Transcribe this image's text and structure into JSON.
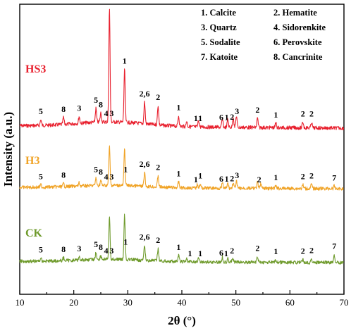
{
  "chart_data": {
    "type": "line",
    "xlabel": "2θ (°)",
    "ylabel": "Intensity (a.u.)",
    "xlim": [
      10,
      70
    ],
    "x_ticks": [
      10,
      20,
      30,
      40,
      50,
      60,
      70
    ],
    "legend_placement": "top-right",
    "legend": [
      {
        "key": "1",
        "name": "Calcite"
      },
      {
        "key": "2",
        "name": "Hematite"
      },
      {
        "key": "3",
        "name": "Quartz"
      },
      {
        "key": "4",
        "name": "Sidorenkite"
      },
      {
        "key": "5",
        "name": "Sodalite"
      },
      {
        "key": "6",
        "name": "Perovskite"
      },
      {
        "key": "7",
        "name": "Katoite"
      },
      {
        "key": "8",
        "name": "Cancrinite"
      }
    ],
    "series": [
      {
        "name": "HS3",
        "color": "#e8202e",
        "baseline": 0.2,
        "peaks": [
          [
            13.9,
            0.05
          ],
          [
            18.1,
            0.06
          ],
          [
            21.0,
            0.06
          ],
          [
            24.1,
            0.12
          ],
          [
            25.0,
            0.08
          ],
          [
            26.6,
            1.0
          ],
          [
            29.4,
            0.46
          ],
          [
            33.1,
            0.19
          ],
          [
            35.6,
            0.17
          ],
          [
            39.4,
            0.09
          ],
          [
            40.9,
            0.05
          ],
          [
            43.1,
            0.06
          ],
          [
            47.5,
            0.07
          ],
          [
            48.5,
            0.07
          ],
          [
            49.5,
            0.09
          ],
          [
            50.1,
            0.1
          ],
          [
            54.0,
            0.08
          ],
          [
            57.4,
            0.04
          ],
          [
            62.4,
            0.05
          ],
          [
            64.0,
            0.05
          ]
        ],
        "peak_labels": [
          {
            "x": 13.9,
            "text": "5"
          },
          {
            "x": 18.1,
            "text": "8"
          },
          {
            "x": 21.0,
            "text": "3"
          },
          {
            "x": 24.1,
            "text": "5"
          },
          {
            "x": 25.0,
            "text": "8"
          },
          {
            "x": 26.0,
            "text": "4"
          },
          {
            "x": 27.0,
            "text": "3"
          },
          {
            "x": 29.4,
            "text": "1"
          },
          {
            "x": 33.1,
            "text": "2,6"
          },
          {
            "x": 35.6,
            "text": "2"
          },
          {
            "x": 39.4,
            "text": "1"
          },
          {
            "x": 42.6,
            "text": "1"
          },
          {
            "x": 43.4,
            "text": "1"
          },
          {
            "x": 47.3,
            "text": "6"
          },
          {
            "x": 48.3,
            "text": "1"
          },
          {
            "x": 49.3,
            "text": "2"
          },
          {
            "x": 50.2,
            "text": "3"
          },
          {
            "x": 54.0,
            "text": "2"
          },
          {
            "x": 57.4,
            "text": "1"
          },
          {
            "x": 62.4,
            "text": "2"
          },
          {
            "x": 64.0,
            "text": "2"
          }
        ]
      },
      {
        "name": "H3",
        "color": "#f0a326",
        "baseline": 0.07,
        "peaks": [
          [
            13.9,
            0.04
          ],
          [
            18.1,
            0.05
          ],
          [
            21.0,
            0.05
          ],
          [
            24.1,
            0.12
          ],
          [
            25.0,
            0.08
          ],
          [
            26.6,
            0.62
          ],
          [
            29.4,
            0.58
          ],
          [
            33.1,
            0.22
          ],
          [
            35.6,
            0.18
          ],
          [
            39.4,
            0.09
          ],
          [
            42.9,
            0.06
          ],
          [
            43.4,
            0.06
          ],
          [
            47.5,
            0.08
          ],
          [
            48.5,
            0.08
          ],
          [
            49.5,
            0.09
          ],
          [
            50.1,
            0.11
          ],
          [
            54.0,
            0.09
          ],
          [
            54.6,
            0.08
          ],
          [
            57.4,
            0.04
          ],
          [
            62.4,
            0.06
          ],
          [
            64.0,
            0.07
          ],
          [
            68.2,
            0.04
          ]
        ],
        "peak_labels": [
          {
            "x": 13.9,
            "text": "5"
          },
          {
            "x": 18.1,
            "text": "8"
          },
          {
            "x": 24.1,
            "text": "5"
          },
          {
            "x": 25.0,
            "text": "8"
          },
          {
            "x": 26.0,
            "text": "4"
          },
          {
            "x": 27.0,
            "text": "3"
          },
          {
            "x": 29.6,
            "text": "1"
          },
          {
            "x": 33.1,
            "text": "2,6"
          },
          {
            "x": 35.6,
            "text": "2"
          },
          {
            "x": 39.4,
            "text": "1"
          },
          {
            "x": 42.6,
            "text": "1"
          },
          {
            "x": 43.4,
            "text": "1"
          },
          {
            "x": 47.3,
            "text": "6"
          },
          {
            "x": 48.3,
            "text": "1"
          },
          {
            "x": 49.3,
            "text": "2"
          },
          {
            "x": 50.2,
            "text": "3"
          },
          {
            "x": 54.3,
            "text": "2"
          },
          {
            "x": 57.4,
            "text": "1"
          },
          {
            "x": 62.4,
            "text": "2"
          },
          {
            "x": 64.0,
            "text": "2"
          },
          {
            "x": 68.2,
            "text": "7"
          }
        ]
      },
      {
        "name": "CK",
        "color": "#6e9a2b",
        "baseline": 0.08,
        "peaks": [
          [
            13.9,
            0.05
          ],
          [
            18.1,
            0.05
          ],
          [
            21.0,
            0.05
          ],
          [
            24.1,
            0.11
          ],
          [
            25.0,
            0.06
          ],
          [
            26.6,
            0.68
          ],
          [
            29.4,
            0.72
          ],
          [
            33.1,
            0.24
          ],
          [
            35.6,
            0.2
          ],
          [
            39.4,
            0.1
          ],
          [
            40.9,
            0.05
          ],
          [
            43.1,
            0.07
          ],
          [
            47.5,
            0.08
          ],
          [
            48.5,
            0.08
          ],
          [
            49.4,
            0.07
          ],
          [
            54.0,
            0.09
          ],
          [
            57.4,
            0.04
          ],
          [
            62.4,
            0.05
          ],
          [
            64.0,
            0.06
          ],
          [
            68.2,
            0.13
          ]
        ],
        "peak_labels": [
          {
            "x": 13.9,
            "text": "5"
          },
          {
            "x": 18.1,
            "text": "8"
          },
          {
            "x": 21.0,
            "text": "3"
          },
          {
            "x": 24.1,
            "text": "5"
          },
          {
            "x": 25.0,
            "text": "8"
          },
          {
            "x": 26.0,
            "text": "4"
          },
          {
            "x": 27.0,
            "text": "3"
          },
          {
            "x": 29.6,
            "text": "1"
          },
          {
            "x": 33.1,
            "text": "2,6"
          },
          {
            "x": 35.6,
            "text": "2"
          },
          {
            "x": 39.4,
            "text": "1"
          },
          {
            "x": 41.5,
            "text": "1"
          },
          {
            "x": 43.4,
            "text": "1"
          },
          {
            "x": 47.3,
            "text": "6"
          },
          {
            "x": 48.2,
            "text": "1"
          },
          {
            "x": 49.3,
            "text": "2"
          },
          {
            "x": 54.0,
            "text": "2"
          },
          {
            "x": 57.4,
            "text": "1"
          },
          {
            "x": 62.4,
            "text": "2"
          },
          {
            "x": 64.0,
            "text": "2"
          },
          {
            "x": 68.2,
            "text": "7"
          }
        ]
      }
    ]
  }
}
